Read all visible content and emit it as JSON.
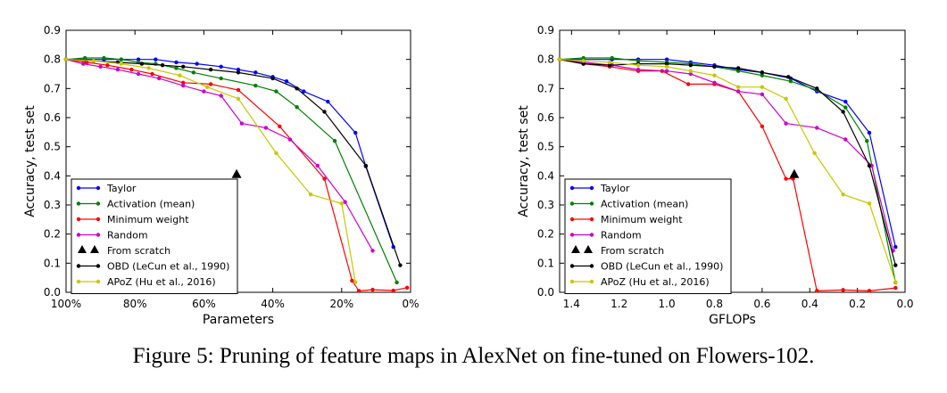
{
  "caption": "Figure 5: Pruning of feature maps in AlexNet on fine-tuned on Flowers-102.",
  "chart_data": [
    {
      "type": "line",
      "xlabel": "Parameters",
      "ylabel": "Accuracy, test set",
      "xlim": [
        100,
        0
      ],
      "ylim": [
        0.0,
        0.9
      ],
      "x_ticks": [
        100,
        80,
        60,
        40,
        20,
        0
      ],
      "x_tick_labels": [
        "100%",
        "80%",
        "60%",
        "40%",
        "20%",
        "0%"
      ],
      "y_ticks": [
        0.0,
        0.1,
        0.2,
        0.3,
        0.4,
        0.5,
        0.6,
        0.7,
        0.8,
        0.9
      ],
      "y_tick_labels": [
        "0.0",
        "0.1",
        "0.2",
        "0.3",
        "0.4",
        "0.5",
        "0.6",
        "0.7",
        "0.8",
        "0.9"
      ],
      "grid": false,
      "legend": "lower-left",
      "series": [
        {
          "name": "Taylor",
          "color": "#0000ff",
          "marker": "dot",
          "x": [
            100,
            94.5,
            89,
            84,
            79,
            74,
            68,
            62,
            55,
            50,
            45,
            40,
            36,
            31,
            24,
            16,
            13,
            5
          ],
          "y": [
            0.8,
            0.8,
            0.8,
            0.8,
            0.8,
            0.8,
            0.79,
            0.785,
            0.775,
            0.765,
            0.755,
            0.74,
            0.725,
            0.69,
            0.655,
            0.548,
            0.433,
            0.156
          ]
        },
        {
          "name": "Activation (mean)",
          "color": "#008000",
          "marker": "dot",
          "x": [
            100,
            94.5,
            89,
            84,
            79,
            74,
            68,
            63,
            55,
            45,
            39,
            33,
            22,
            4
          ],
          "y": [
            0.8,
            0.805,
            0.805,
            0.8,
            0.79,
            0.785,
            0.77,
            0.755,
            0.735,
            0.71,
            0.69,
            0.636,
            0.52,
            0.034
          ]
        },
        {
          "name": "Minimum weight",
          "color": "#ff0000",
          "marker": "dot",
          "x": [
            100,
            94,
            88,
            81,
            75,
            66,
            58,
            50,
            38,
            25,
            17,
            15,
            11,
            5,
            1
          ],
          "y": [
            0.8,
            0.79,
            0.78,
            0.765,
            0.75,
            0.72,
            0.715,
            0.695,
            0.57,
            0.39,
            0.04,
            0.005,
            0.009,
            0.006,
            0.016
          ]
        },
        {
          "name": "Random",
          "color": "#cc00cc",
          "marker": "dot",
          "x": [
            100,
            95,
            90,
            85,
            79,
            73,
            66,
            60,
            55,
            49,
            42,
            35,
            27,
            19,
            11
          ],
          "y": [
            0.8,
            0.785,
            0.775,
            0.765,
            0.75,
            0.735,
            0.71,
            0.69,
            0.675,
            0.58,
            0.565,
            0.525,
            0.435,
            0.31,
            0.143
          ]
        },
        {
          "name": "From scratch",
          "color": "#000000",
          "marker": "triangle",
          "line": false,
          "x": [
            50.5
          ],
          "y": [
            0.405
          ]
        },
        {
          "name": "OBD (LeCun et al., 1990)",
          "color": "#000000",
          "marker": "dot",
          "x": [
            100,
            92,
            85,
            78,
            72,
            66,
            58,
            50,
            40,
            33,
            25,
            13,
            3
          ],
          "y": [
            0.8,
            0.795,
            0.79,
            0.785,
            0.78,
            0.775,
            0.765,
            0.755,
            0.735,
            0.7,
            0.62,
            0.435,
            0.093
          ]
        },
        {
          "name": "APoZ (Hu et al., 2016)",
          "color": "#c8c800",
          "marker": "dot",
          "x": [
            100,
            92,
            84,
            76,
            67,
            59,
            50,
            39,
            29,
            20,
            16
          ],
          "y": [
            0.8,
            0.795,
            0.785,
            0.77,
            0.745,
            0.705,
            0.665,
            0.478,
            0.336,
            0.305,
            0.035
          ]
        }
      ]
    },
    {
      "type": "line",
      "xlabel": "GFLOPs",
      "ylabel": "Accuracy, test set",
      "xlim": [
        1.45,
        0.0
      ],
      "ylim": [
        0.0,
        0.9
      ],
      "x_ticks": [
        1.4,
        1.2,
        1.0,
        0.8,
        0.6,
        0.4,
        0.2,
        0.0
      ],
      "x_tick_labels": [
        "1.4",
        "1.2",
        "1.0",
        "0.8",
        "0.6",
        "0.4",
        "0.2",
        "0.0"
      ],
      "y_ticks": [
        0.0,
        0.1,
        0.2,
        0.3,
        0.4,
        0.5,
        0.6,
        0.7,
        0.8,
        0.9
      ],
      "y_tick_labels": [
        "0.0",
        "0.1",
        "0.2",
        "0.3",
        "0.4",
        "0.5",
        "0.6",
        "0.7",
        "0.8",
        "0.9"
      ],
      "grid": false,
      "legend": "lower-left",
      "series": [
        {
          "name": "Taylor",
          "color": "#0000ff",
          "marker": "dot",
          "x": [
            1.45,
            1.35,
            1.23,
            1.12,
            1.0,
            0.9,
            0.8,
            0.7,
            0.6,
            0.48,
            0.37,
            0.25,
            0.15,
            0.04
          ],
          "y": [
            0.8,
            0.8,
            0.8,
            0.8,
            0.8,
            0.79,
            0.78,
            0.765,
            0.755,
            0.735,
            0.69,
            0.655,
            0.548,
            0.156
          ]
        },
        {
          "name": "Activation (mean)",
          "color": "#008000",
          "marker": "dot",
          "x": [
            1.45,
            1.35,
            1.23,
            1.12,
            1.0,
            0.9,
            0.8,
            0.7,
            0.6,
            0.48,
            0.37,
            0.25,
            0.16,
            0.04
          ],
          "y": [
            0.8,
            0.805,
            0.805,
            0.795,
            0.79,
            0.785,
            0.775,
            0.76,
            0.745,
            0.725,
            0.695,
            0.635,
            0.52,
            0.034
          ]
        },
        {
          "name": "Minimum weight",
          "color": "#ff0000",
          "marker": "dot",
          "x": [
            1.45,
            1.35,
            1.24,
            1.12,
            1.02,
            0.91,
            0.8,
            0.7,
            0.6,
            0.5,
            0.47,
            0.37,
            0.26,
            0.15,
            0.04
          ],
          "y": [
            0.8,
            0.785,
            0.775,
            0.76,
            0.76,
            0.715,
            0.715,
            0.69,
            0.57,
            0.39,
            0.39,
            0.005,
            0.008,
            0.005,
            0.015
          ]
        },
        {
          "name": "Random",
          "color": "#cc00cc",
          "marker": "dot",
          "x": [
            1.45,
            1.35,
            1.23,
            1.12,
            1.0,
            0.9,
            0.8,
            0.7,
            0.6,
            0.5,
            0.37,
            0.25,
            0.14,
            0.05
          ],
          "y": [
            0.8,
            0.79,
            0.78,
            0.765,
            0.76,
            0.75,
            0.72,
            0.69,
            0.68,
            0.58,
            0.565,
            0.525,
            0.435,
            0.143
          ]
        },
        {
          "name": "From scratch",
          "color": "#000000",
          "marker": "triangle",
          "line": false,
          "x": [
            0.465
          ],
          "y": [
            0.405
          ]
        },
        {
          "name": "OBD (LeCun et al., 1990)",
          "color": "#000000",
          "marker": "dot",
          "x": [
            1.45,
            1.35,
            1.24,
            1.12,
            1.0,
            0.9,
            0.8,
            0.7,
            0.6,
            0.49,
            0.37,
            0.26,
            0.15,
            0.04
          ],
          "y": [
            0.8,
            0.785,
            0.78,
            0.785,
            0.785,
            0.78,
            0.775,
            0.77,
            0.755,
            0.74,
            0.7,
            0.62,
            0.435,
            0.093
          ]
        },
        {
          "name": "APoZ (Hu et al., 2016)",
          "color": "#c8c800",
          "marker": "dot",
          "x": [
            1.45,
            1.35,
            1.24,
            1.12,
            1.0,
            0.9,
            0.8,
            0.7,
            0.6,
            0.5,
            0.38,
            0.26,
            0.15,
            0.04
          ],
          "y": [
            0.8,
            0.795,
            0.79,
            0.78,
            0.775,
            0.76,
            0.745,
            0.705,
            0.705,
            0.665,
            0.478,
            0.336,
            0.305,
            0.035
          ]
        }
      ]
    }
  ]
}
